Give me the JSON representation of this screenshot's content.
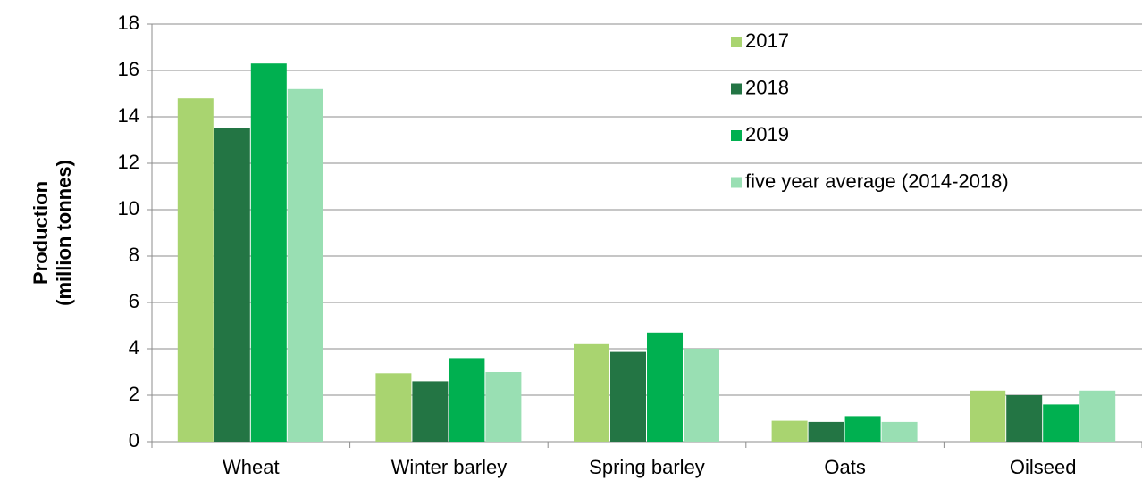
{
  "chart_data": {
    "type": "bar",
    "ylabel": [
      "Production",
      "(million tonnes)"
    ],
    "categories": [
      "Wheat",
      "Winter barley",
      "Spring barley",
      "Oats",
      "Oilseed"
    ],
    "series": [
      {
        "name": "2017",
        "color": "#a9d470",
        "values": [
          14.8,
          2.95,
          4.2,
          0.9,
          2.2
        ]
      },
      {
        "name": "2018",
        "color": "#237544",
        "values": [
          13.5,
          2.6,
          3.9,
          0.85,
          2.0
        ]
      },
      {
        "name": "2019",
        "color": "#00b050",
        "values": [
          16.3,
          3.6,
          4.7,
          1.1,
          1.6
        ]
      },
      {
        "name": "five year average (2014-2018)",
        "color": "#99dfb3",
        "values": [
          15.2,
          3.0,
          4.0,
          0.85,
          2.2
        ]
      }
    ],
    "ylim": [
      0,
      18
    ],
    "yticks": [
      0,
      2,
      4,
      6,
      8,
      10,
      12,
      14,
      16,
      18
    ],
    "grid": true,
    "legend": "upper right"
  }
}
